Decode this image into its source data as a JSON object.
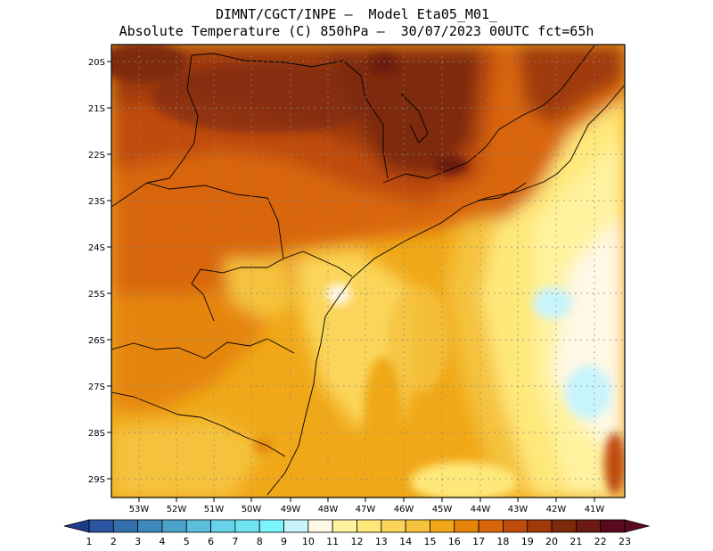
{
  "title": {
    "line1": "DIMNT/CGCT/INPE –  Model Eta05_M01_",
    "line2": "Absolute Temperature (C) 850hPa –  30/07/2023 00UTC fct=65h"
  },
  "map": {
    "region": "Southern/Southeastern Brazil",
    "lat_ticks": [
      "20S",
      "21S",
      "22S",
      "23S",
      "24S",
      "25S",
      "26S",
      "27S",
      "28S",
      "29S"
    ],
    "lon_ticks": [
      "53W",
      "52W",
      "51W",
      "50W",
      "49W",
      "48W",
      "47W",
      "46W",
      "45W",
      "44W",
      "43W",
      "42W",
      "41W"
    ]
  },
  "colorbar": {
    "labels": [
      "1",
      "2",
      "3",
      "4",
      "5",
      "6",
      "7",
      "8",
      "9",
      "10",
      "11",
      "12",
      "13",
      "14",
      "15",
      "16",
      "17",
      "18",
      "19",
      "20",
      "21",
      "22",
      "23"
    ],
    "colors": [
      "#1e3c8c",
      "#2a55a0",
      "#3470ad",
      "#3e88bb",
      "#4ba3cc",
      "#5bbfdc",
      "#66d3ea",
      "#70e3f3",
      "#7af5fb",
      "#c8f4fb",
      "#fff8e6",
      "#fff3a0",
      "#ffe87a",
      "#fbd55a",
      "#f5c23e",
      "#f0a818",
      "#e6850a",
      "#d9660a",
      "#c04c0a",
      "#a03a0a",
      "#7e2a0a",
      "#6a1a10",
      "#5a0a1e"
    ]
  }
}
